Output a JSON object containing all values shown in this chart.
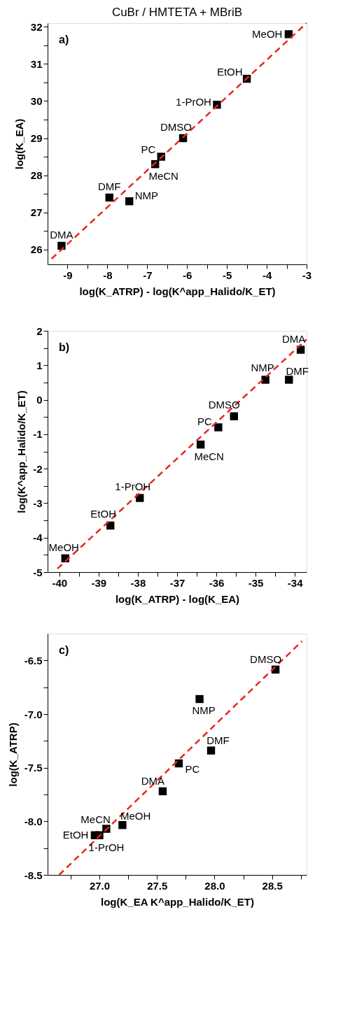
{
  "chart_data": [
    {
      "type": "scatter",
      "title": "CuBr / HMTETA + MBriB",
      "xlabel": "log(K_ATRP)  - log(K^app_Halido/K_ET)",
      "ylabel": "log(K_EA)",
      "grid": false,
      "xlim": [
        -9.5,
        -3
      ],
      "ylim": [
        25.6,
        32.1
      ],
      "xticks": [
        -9,
        {
          "value": -8.5,
          "label": null
        },
        -8,
        {
          "value": -7.5,
          "label": null
        },
        -7,
        {
          "value": -6.5,
          "label": null
        },
        -6,
        {
          "value": -5.5,
          "label": null
        },
        -5,
        {
          "value": -4.5,
          "label": null
        },
        -4,
        {
          "value": -3.5,
          "label": null
        },
        -3
      ],
      "yticks": [
        26,
        {
          "value": 26.5,
          "label": null
        },
        27,
        {
          "value": 27.5,
          "label": null
        },
        28,
        {
          "value": 28.5,
          "label": null
        },
        29,
        {
          "value": 29.5,
          "label": null
        },
        30,
        {
          "value": 30.5,
          "label": null
        },
        31,
        {
          "value": 31.5,
          "label": null
        },
        32
      ],
      "series": [
        {
          "type": "scatter",
          "marker": "square",
          "color": "#000000",
          "x": [
            -9.15,
            -7.95,
            -7.45,
            -6.8,
            -6.65,
            -6.1,
            -5.25,
            -4.5,
            -3.45
          ],
          "values": [
            26.1,
            27.4,
            27.3,
            28.3,
            28.5,
            29.0,
            29.9,
            30.6,
            31.8
          ]
        },
        {
          "type": "line",
          "color": "#e8261f",
          "line_style": "dashed",
          "x": [
            -9.4,
            -3.0
          ],
          "values": [
            25.75,
            32.1
          ]
        }
      ],
      "annotations": [
        "a)",
        {
          "text": "DMA",
          "x": -9.15,
          "y": 26.1
        },
        {
          "text": "DMF",
          "x": -7.95,
          "y": 27.4
        },
        {
          "text": "NMP",
          "x": -7.45,
          "y": 27.3
        },
        {
          "text": "MeCN",
          "x": -6.8,
          "y": 28.3
        },
        {
          "text": "PC",
          "x": -6.65,
          "y": 28.5
        },
        {
          "text": "DMSO",
          "x": -6.1,
          "y": 29.0
        },
        {
          "text": "1-PrOH",
          "x": -5.25,
          "y": 29.9
        },
        {
          "text": "EtOH",
          "x": -4.5,
          "y": 30.6
        },
        {
          "text": "MeOH",
          "x": -3.45,
          "y": 31.8
        }
      ]
    },
    {
      "type": "scatter",
      "xlabel": "log(K_ATRP)  - log(K_EA)",
      "ylabel": "log(K^app_Halido/K_ET)",
      "grid": false,
      "xlim": [
        -40.3,
        -33.7
      ],
      "ylim": [
        -5,
        2
      ],
      "xticks": [
        -40,
        {
          "value": -39.5,
          "label": null
        },
        -39,
        {
          "value": -38.5,
          "label": null
        },
        -38,
        {
          "value": -37.5,
          "label": null
        },
        -37,
        {
          "value": -36.5,
          "label": null
        },
        -36,
        {
          "value": -35.5,
          "label": null
        },
        -35,
        {
          "value": -34.5,
          "label": null
        },
        -34
      ],
      "yticks": [
        -5,
        {
          "value": -4.5,
          "label": null
        },
        -4,
        {
          "value": -3.5,
          "label": null
        },
        -3,
        {
          "value": -2.5,
          "label": null
        },
        -2,
        {
          "value": -1.5,
          "label": null
        },
        -1,
        {
          "value": -0.5,
          "label": null
        },
        0,
        {
          "value": 0.5,
          "label": null
        },
        1,
        {
          "value": 1.5,
          "label": null
        },
        2
      ],
      "series": [
        {
          "type": "scatter",
          "marker": "square",
          "color": "#000000",
          "x": [
            -39.85,
            -38.7,
            -37.95,
            -36.4,
            -35.95,
            -35.55,
            -34.75,
            -34.15,
            -33.85
          ],
          "values": [
            -4.6,
            -3.65,
            -2.85,
            -1.3,
            -0.8,
            -0.48,
            0.58,
            0.58,
            1.45
          ]
        },
        {
          "type": "line",
          "color": "#e8261f",
          "line_style": "dashed",
          "x": [
            -40.05,
            -33.7
          ],
          "values": [
            -4.9,
            1.75
          ]
        }
      ],
      "annotations": [
        "b)",
        {
          "text": "MeOH",
          "x": -39.85,
          "y": -4.6
        },
        {
          "text": "EtOH",
          "x": -38.7,
          "y": -3.65
        },
        {
          "text": "1-PrOH",
          "x": -37.95,
          "y": -2.85
        },
        {
          "text": "MeCN",
          "x": -36.4,
          "y": -1.3
        },
        {
          "text": "PC",
          "x": -35.95,
          "y": -0.8
        },
        {
          "text": "DMSO",
          "x": -35.55,
          "y": -0.48
        },
        {
          "text": "NMP",
          "x": -34.75,
          "y": 0.58
        },
        {
          "text": "DMF",
          "x": -34.15,
          "y": 0.58
        },
        {
          "text": "DMA",
          "x": -33.85,
          "y": 1.45
        }
      ]
    },
    {
      "type": "scatter",
      "xlabel": "log(K_EA K^app_Halido/K_ET)",
      "ylabel": "log(K_ATRP)",
      "grid": false,
      "xlim": [
        26.55,
        28.8
      ],
      "ylim": [
        -8.5,
        -6.25
      ],
      "xticks": [
        {
          "value": 26.75,
          "label": null
        },
        {
          "value": 27,
          "label": "27.0"
        },
        {
          "value": 27.25,
          "label": null
        },
        27.5,
        {
          "value": 27.75,
          "label": null
        },
        {
          "value": 28,
          "label": "28.0"
        },
        {
          "value": 28.25,
          "label": null
        },
        28.5,
        {
          "value": 28.75,
          "label": null
        }
      ],
      "yticks": [
        -8.5,
        {
          "value": -8.25,
          "label": null
        },
        {
          "value": -8,
          "label": "-8.0"
        },
        {
          "value": -7.75,
          "label": null
        },
        -7.5,
        {
          "value": -7.25,
          "label": null
        },
        {
          "value": -7,
          "label": "-7.0"
        },
        {
          "value": -6.75,
          "label": null
        },
        -6.5
      ],
      "series": [
        {
          "type": "scatter",
          "marker": "square",
          "color": "#000000",
          "x": [
            26.96,
            27.0,
            27.06,
            27.2,
            27.55,
            27.69,
            27.87,
            27.97,
            28.53
          ],
          "values": [
            -8.13,
            -8.13,
            -8.07,
            -8.035,
            -7.72,
            -7.46,
            -6.86,
            -7.34,
            -6.585
          ]
        },
        {
          "type": "line",
          "color": "#e8261f",
          "line_style": "dashed",
          "x": [
            26.65,
            28.76
          ],
          "values": [
            -8.5,
            -6.32
          ]
        }
      ],
      "annotations": [
        "c)",
        {
          "text": "EtOH",
          "x": 26.96,
          "y": -8.13
        },
        {
          "text": "1-PrOH",
          "x": 27.0,
          "y": -8.13
        },
        {
          "text": "MeCN",
          "x": 27.06,
          "y": -8.07
        },
        {
          "text": "MeOH",
          "x": 27.2,
          "y": -8.035
        },
        {
          "text": "DMA",
          "x": 27.55,
          "y": -7.72
        },
        {
          "text": "PC",
          "x": 27.69,
          "y": -7.46
        },
        {
          "text": "NMP",
          "x": 27.87,
          "y": -6.86
        },
        {
          "text": "DMF",
          "x": 27.97,
          "y": -7.34
        },
        {
          "text": "DMSO",
          "x": 28.53,
          "y": -6.585
        }
      ]
    }
  ]
}
